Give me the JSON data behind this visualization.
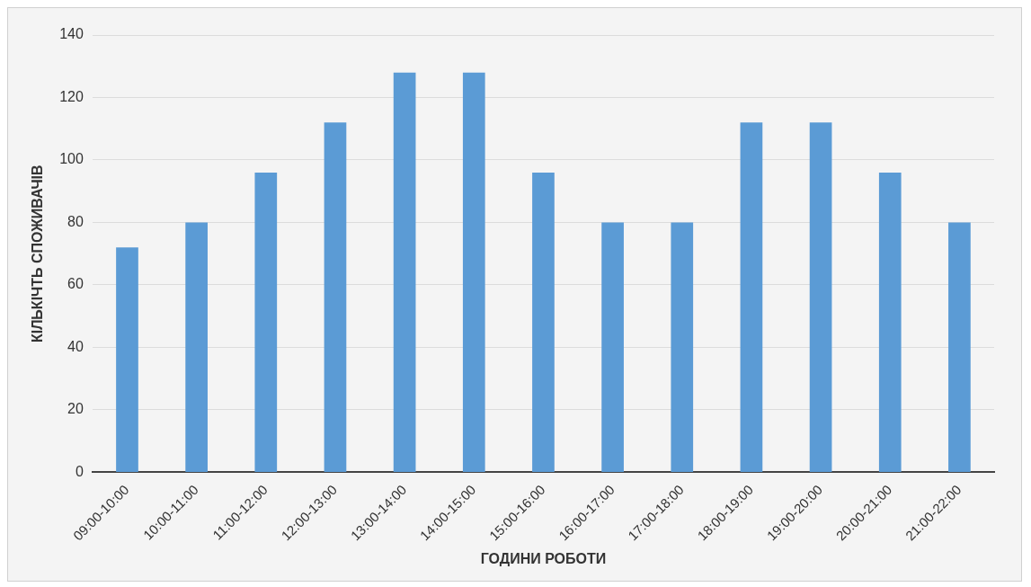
{
  "chart_data": {
    "type": "bar",
    "xlabel": "ГОДИНИ РОБОТИ",
    "ylabel": "КІЛЬКІЧТЬ СПОЖИВАЧІВ",
    "categories": [
      "09:00-10:00",
      "10:00-11:00",
      "11:00-12:00",
      "12:00-13:00",
      "13:00-14:00",
      "14:00-15:00",
      "15:00-16:00",
      "16:00-17:00",
      "17:00-18:00",
      "18:00-19:00",
      "19:00-20:00",
      "20:00-21:00",
      "21:00-22:00"
    ],
    "values": [
      72,
      80,
      96,
      112,
      128,
      128,
      96,
      80,
      80,
      112,
      112,
      96,
      80
    ],
    "color": "#5b9bd5",
    "ylim": [
      0,
      140
    ],
    "yticks": [
      0,
      20,
      40,
      60,
      80,
      100,
      120,
      140
    ],
    "grid": "y"
  }
}
